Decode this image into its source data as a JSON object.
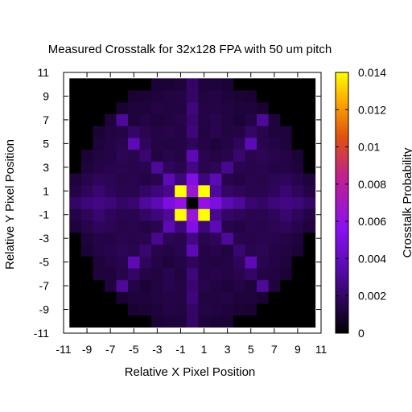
{
  "chart_data": {
    "type": "heatmap",
    "title": "Measured Crosstalk for 32x128 FPA with 50 um pitch",
    "xlabel": "Relative X Pixel Position",
    "ylabel": "Relative Y Pixel Position",
    "colorbar_label": "Crosstalk Probability",
    "x_ticks": [
      "-11",
      "-9",
      "-7",
      "-5",
      "-3",
      "-1",
      "1",
      "3",
      "5",
      "7",
      "9",
      "11"
    ],
    "y_ticks": [
      "-11",
      "-9",
      "-7",
      "-5",
      "-3",
      "-1",
      "1",
      "3",
      "5",
      "7",
      "9",
      "11"
    ],
    "colorbar_ticks": [
      "0",
      "0.002",
      "0.004",
      "0.006",
      "0.008",
      "0.01",
      "0.012",
      "0.014"
    ],
    "x_range": [
      -11,
      11
    ],
    "y_range": [
      -11,
      11
    ],
    "z_range": [
      0,
      0.014
    ],
    "grid_x_start": -10,
    "grid_y_start": -10,
    "grid_size": 21,
    "colormap": "black-purple-red-yellow",
    "grid": false,
    "masked_value": 0,
    "values": [
      [
        0,
        0,
        0,
        0,
        0,
        0,
        0,
        0.0011,
        0.0012,
        0.0012,
        0.002,
        0.0012,
        0.0011,
        0.0011,
        0,
        0,
        0,
        0,
        0,
        0,
        0
      ],
      [
        0,
        0,
        0,
        0,
        0,
        0.001,
        0.0011,
        0.0012,
        0.0014,
        0.0013,
        0.002,
        0.0014,
        0.0013,
        0.0012,
        0.0011,
        0.001,
        0,
        0,
        0,
        0,
        0
      ],
      [
        0,
        0,
        0,
        0,
        0.001,
        0.0012,
        0.0012,
        0.0013,
        0.0014,
        0.0014,
        0.0024,
        0.0013,
        0.0013,
        0.0014,
        0.0012,
        0.0012,
        0.001,
        0,
        0,
        0,
        0
      ],
      [
        0,
        0,
        0,
        0.0012,
        0.003,
        0.0014,
        0.0011,
        0.0013,
        0.0016,
        0.0014,
        0.0022,
        0.0015,
        0.0013,
        0.0012,
        0.0014,
        0.0012,
        0.003,
        0.0012,
        0,
        0,
        0
      ],
      [
        0,
        0,
        0.0012,
        0.0012,
        0.0015,
        0.002,
        0.0014,
        0.0013,
        0.0016,
        0.0013,
        0.0024,
        0.0014,
        0.0015,
        0.0014,
        0.0016,
        0.002,
        0.0014,
        0.0013,
        0.0011,
        0,
        0
      ],
      [
        0,
        0,
        0.0012,
        0.0014,
        0.0016,
        0.0036,
        0.0018,
        0.0014,
        0.0012,
        0.0014,
        0.0018,
        0.0014,
        0.0013,
        0.0014,
        0.0018,
        0.0036,
        0.0016,
        0.0014,
        0.0012,
        0,
        0
      ],
      [
        0,
        0.0011,
        0.0014,
        0.0015,
        0.0017,
        0.0016,
        0.0022,
        0.0015,
        0.0014,
        0.0016,
        0.0036,
        0.0014,
        0.0015,
        0.0013,
        0.0022,
        0.0016,
        0.0017,
        0.0014,
        0.0013,
        0.0011,
        0
      ],
      [
        0,
        0.0012,
        0.0014,
        0.0014,
        0.0016,
        0.0015,
        0.0016,
        0.0028,
        0.0017,
        0.0016,
        0.0026,
        0.0016,
        0.0018,
        0.003,
        0.0016,
        0.0015,
        0.0016,
        0.0015,
        0.0014,
        0.0012,
        0
      ],
      [
        0.0012,
        0.0015,
        0.0018,
        0.0017,
        0.0015,
        0.0016,
        0.0014,
        0.0016,
        0.0036,
        0.0024,
        0.0052,
        0.0024,
        0.0036,
        0.0015,
        0.0014,
        0.0016,
        0.0015,
        0.0017,
        0.0018,
        0.0015,
        0.0012
      ],
      [
        0.0014,
        0.0018,
        0.0022,
        0.0018,
        0.0016,
        0.0016,
        0.002,
        0.0024,
        0.003,
        0.014,
        0.0064,
        0.014,
        0.0028,
        0.002,
        0.0018,
        0.0016,
        0.0016,
        0.0018,
        0.0022,
        0.0018,
        0.0014
      ],
      [
        0.002,
        0.0024,
        0.0026,
        0.0024,
        0.002,
        0.0022,
        0.003,
        0.0036,
        0.005,
        0.006,
        0,
        0.006,
        0.005,
        0.0036,
        0.003,
        0.0022,
        0.002,
        0.0024,
        0.0026,
        0.0024,
        0.002
      ],
      [
        0.0014,
        0.0018,
        0.0022,
        0.0018,
        0.0016,
        0.0016,
        0.002,
        0.0024,
        0.0028,
        0.014,
        0.0064,
        0.014,
        0.003,
        0.002,
        0.0018,
        0.0016,
        0.0016,
        0.0018,
        0.0022,
        0.0018,
        0.0014
      ],
      [
        0.0012,
        0.0015,
        0.0018,
        0.0017,
        0.0015,
        0.0016,
        0.0014,
        0.0016,
        0.0036,
        0.0024,
        0.0052,
        0.0024,
        0.0036,
        0.0015,
        0.0014,
        0.0016,
        0.0015,
        0.0017,
        0.0018,
        0.0015,
        0.0012
      ],
      [
        0,
        0.0012,
        0.0014,
        0.0015,
        0.0016,
        0.0015,
        0.0016,
        0.003,
        0.0018,
        0.0016,
        0.0026,
        0.0016,
        0.0017,
        0.0028,
        0.0016,
        0.0015,
        0.0016,
        0.0014,
        0.0014,
        0.0012,
        0
      ],
      [
        0,
        0.0011,
        0.0013,
        0.0014,
        0.0017,
        0.0016,
        0.0022,
        0.0013,
        0.0015,
        0.0014,
        0.0036,
        0.0016,
        0.0014,
        0.0015,
        0.0022,
        0.0016,
        0.0017,
        0.0015,
        0.0014,
        0.0011,
        0
      ],
      [
        0,
        0,
        0.0012,
        0.0014,
        0.0016,
        0.0036,
        0.0018,
        0.0014,
        0.0013,
        0.0014,
        0.0018,
        0.0014,
        0.0012,
        0.0014,
        0.0018,
        0.0036,
        0.0016,
        0.0014,
        0.0012,
        0,
        0
      ],
      [
        0,
        0,
        0.0011,
        0.0013,
        0.0014,
        0.002,
        0.0016,
        0.0014,
        0.0015,
        0.0014,
        0.0024,
        0.0013,
        0.0016,
        0.0013,
        0.0014,
        0.002,
        0.0015,
        0.0012,
        0.0012,
        0,
        0
      ],
      [
        0,
        0,
        0,
        0.0012,
        0.003,
        0.0012,
        0.0014,
        0.0012,
        0.0013,
        0.0015,
        0.0022,
        0.0014,
        0.0016,
        0.0013,
        0.0011,
        0.0014,
        0.003,
        0.0012,
        0,
        0,
        0
      ],
      [
        0,
        0,
        0,
        0,
        0.001,
        0.0012,
        0.0012,
        0.0014,
        0.0013,
        0.0013,
        0.0024,
        0.0014,
        0.0014,
        0.0013,
        0.0012,
        0.0012,
        0.001,
        0,
        0,
        0,
        0
      ],
      [
        0,
        0,
        0,
        0,
        0,
        0.001,
        0.0011,
        0.0012,
        0.0013,
        0.0014,
        0.002,
        0.0013,
        0.0014,
        0.0012,
        0.0011,
        0.001,
        0,
        0,
        0,
        0,
        0
      ],
      [
        0,
        0,
        0,
        0,
        0,
        0,
        0,
        0.0011,
        0.0011,
        0.0012,
        0.002,
        0.0012,
        0.0012,
        0.0011,
        0,
        0,
        0,
        0,
        0,
        0,
        0
      ]
    ]
  }
}
